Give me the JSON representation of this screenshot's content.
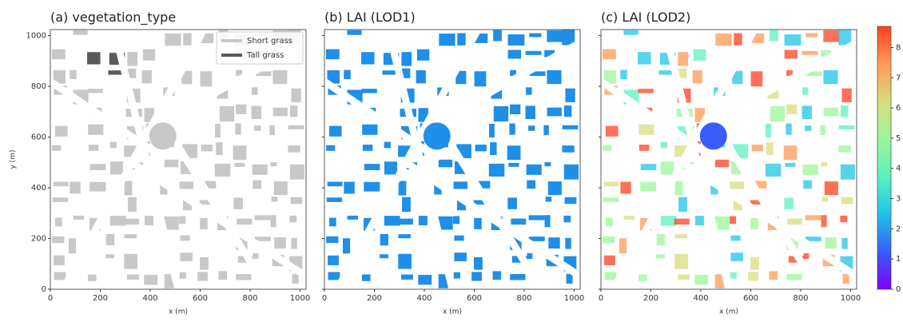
{
  "chart_data": [
    {
      "type": "map",
      "title": "(a) vegetation_type",
      "xlabel": "x (m)",
      "ylabel": "y (m)",
      "xlim": [
        0,
        1024
      ],
      "ylim": [
        0,
        1024
      ],
      "xticks": [
        0,
        200,
        400,
        600,
        800,
        1000
      ],
      "yticks": [
        0,
        200,
        400,
        600,
        800,
        1000
      ],
      "legend": "upper right",
      "series": [
        {
          "name": "Short grass",
          "color": "#c8c8c8"
        },
        {
          "name": "Tall grass",
          "color": "#5a5a5a"
        }
      ]
    },
    {
      "type": "map",
      "title": "(b) LAI (LOD1)",
      "xlabel": "x (m)",
      "xlim": [
        0,
        1024
      ],
      "ylim": [
        0,
        1024
      ],
      "xticks": [
        0,
        200,
        400,
        600,
        800,
        1000
      ],
      "yticks": [
        0,
        200,
        400,
        600,
        800,
        1000
      ],
      "color": "#1f8fe8"
    },
    {
      "type": "map",
      "title": "(c) LAI (LOD2)",
      "xlabel": "x (m)",
      "xlim": [
        0,
        1024
      ],
      "ylim": [
        0,
        1024
      ],
      "xticks": [
        0,
        200,
        400,
        600,
        800,
        1000
      ],
      "yticks": [
        0,
        200,
        400,
        600,
        800,
        1000
      ],
      "colorbar": {
        "lim": [
          0,
          8.7
        ],
        "ticks": [
          0,
          1,
          2,
          3,
          4,
          5,
          6,
          7,
          8
        ],
        "colors": [
          "#7f00ff",
          "#3a5cfb",
          "#1fc4e6",
          "#5cf0c0",
          "#9cf59a",
          "#d8dc7e",
          "#ff9a55",
          "#ff4020"
        ]
      }
    }
  ]
}
